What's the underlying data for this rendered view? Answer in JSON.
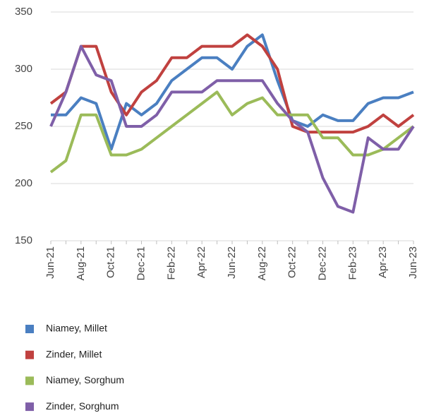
{
  "chart_data": {
    "type": "line",
    "categories": [
      "Jun-21",
      null,
      "Aug-21",
      null,
      "Oct-21",
      null,
      "Dec-21",
      null,
      "Feb-22",
      null,
      "Apr-22",
      null,
      "Jun-22",
      null,
      "Aug-22",
      null,
      "Oct-22",
      null,
      "Dec-22",
      null,
      "Feb-23",
      null,
      "Apr-23",
      null,
      "Jun-23"
    ],
    "series": [
      {
        "name": "Niamey, Millet",
        "color": "#4a7fc1",
        "values": [
          260,
          260,
          275,
          270,
          230,
          270,
          260,
          270,
          290,
          300,
          310,
          310,
          300,
          320,
          330,
          290,
          255,
          250,
          260,
          255,
          255,
          270,
          275,
          275,
          280
        ]
      },
      {
        "name": "Zinder, Millet",
        "color": "#c0413f",
        "values": [
          270,
          280,
          320,
          320,
          280,
          260,
          280,
          290,
          310,
          310,
          320,
          320,
          320,
          330,
          320,
          300,
          250,
          245,
          245,
          245,
          245,
          250,
          260,
          250,
          260
        ]
      },
      {
        "name": "Niamey, Sorghum",
        "color": "#9bbb59",
        "values": [
          210,
          220,
          260,
          260,
          225,
          225,
          230,
          240,
          250,
          260,
          270,
          280,
          260,
          270,
          275,
          260,
          260,
          260,
          240,
          240,
          225,
          225,
          230,
          240,
          250
        ]
      },
      {
        "name": "Zinder, Sorghum",
        "color": "#7f5fa8",
        "values": [
          250,
          280,
          320,
          295,
          290,
          250,
          250,
          260,
          280,
          280,
          280,
          290,
          290,
          290,
          290,
          270,
          255,
          245,
          205,
          180,
          175,
          240,
          230,
          230,
          250
        ]
      }
    ],
    "ylim": [
      150,
      350
    ],
    "yticks": [
      150,
      200,
      250,
      300,
      350
    ],
    "grid": true
  }
}
